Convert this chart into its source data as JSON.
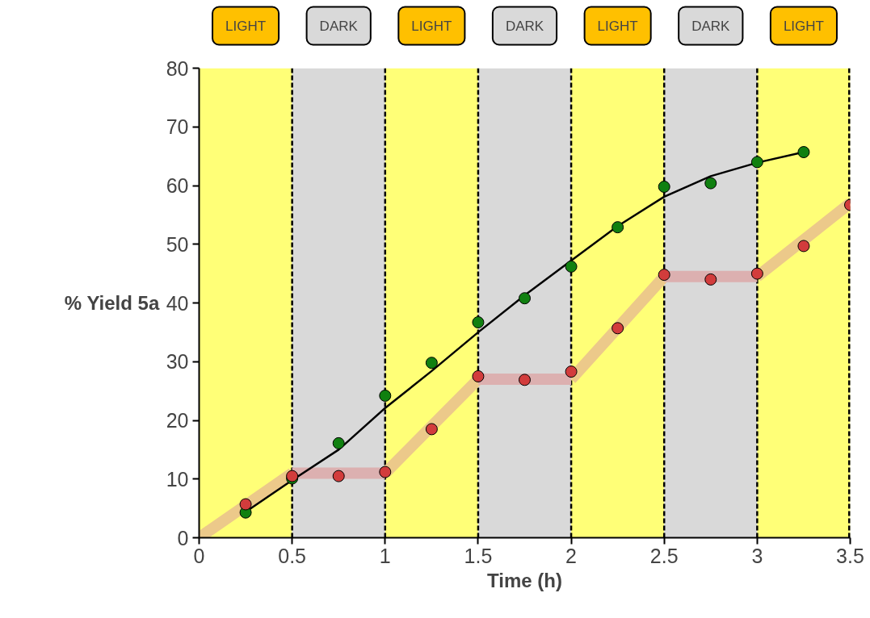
{
  "chart_data": {
    "type": "scatter",
    "xlabel": "Time (h)",
    "ylabel": "% Yield 5a",
    "xlim": [
      0,
      3.5
    ],
    "xticks": [
      0,
      0.5,
      1,
      1.5,
      2,
      2.5,
      3,
      3.5
    ],
    "ylim": [
      0,
      80
    ],
    "yticks": [
      0,
      10,
      20,
      30,
      40,
      50,
      60,
      70,
      80
    ],
    "grid": false,
    "marker": "circle",
    "series": [
      {
        "type": "line",
        "marker": "none",
        "color": "#ecc98a",
        "x": [
          0,
          0.5,
          null,
          1,
          1.5,
          null,
          2,
          2.5,
          null,
          3,
          3.5
        ],
        "values": [
          0,
          11,
          null,
          11,
          27,
          null,
          27,
          44.5,
          null,
          44.5,
          57
        ]
      },
      {
        "type": "line",
        "marker": "none",
        "color": "#dcb0b0",
        "x": [
          0.5,
          1,
          null,
          1.5,
          2,
          null,
          2.5,
          3
        ],
        "values": [
          11,
          11,
          null,
          27,
          27,
          null,
          44.5,
          44.5
        ]
      },
      {
        "type": "line",
        "marker": "none",
        "color": "#000000",
        "x": [
          0.25,
          0.5,
          0.75,
          1,
          1.25,
          1.5,
          1.75,
          2,
          2.25,
          2.5,
          2.75,
          3,
          3.25
        ],
        "values": [
          4.4,
          9.8,
          15,
          22.1,
          28.4,
          35,
          41.3,
          47.2,
          53.1,
          58.1,
          61.6,
          63.9,
          65.7
        ]
      },
      {
        "color": "#108010",
        "x": [
          0.25,
          0.5,
          0.75,
          1,
          1.25,
          1.5,
          1.75,
          2,
          2.25,
          2.5,
          2.75,
          3,
          3.25
        ],
        "values": [
          4.3,
          10.1,
          16.1,
          24.2,
          29.8,
          36.7,
          40.8,
          46.2,
          52.9,
          59.8,
          60.4,
          64,
          65.7
        ]
      },
      {
        "color": "#d23c3c",
        "x": [
          0.25,
          0.5,
          0.75,
          1,
          1.25,
          1.5,
          1.75,
          2,
          2.25,
          2.5,
          2.75,
          3,
          3.25,
          3.5
        ],
        "values": [
          5.7,
          10.5,
          10.5,
          11.2,
          18.5,
          27.5,
          26.9,
          28.3,
          35.7,
          44.8,
          44,
          45,
          49.7,
          56.7
        ]
      }
    ],
    "bands": [
      {
        "axis": "x",
        "from": 0,
        "to": 0.5,
        "label": "LIGHT",
        "color": "#ffff77"
      },
      {
        "axis": "x",
        "from": 0.5,
        "to": 1,
        "label": "DARK",
        "color": "#d9d9d9"
      },
      {
        "axis": "x",
        "from": 1,
        "to": 1.5,
        "label": "LIGHT",
        "color": "#ffff77"
      },
      {
        "axis": "x",
        "from": 1.5,
        "to": 2,
        "label": "DARK",
        "color": "#d9d9d9"
      },
      {
        "axis": "x",
        "from": 2,
        "to": 2.5,
        "label": "LIGHT",
        "color": "#ffff77"
      },
      {
        "axis": "x",
        "from": 2.5,
        "to": 3,
        "label": "DARK",
        "color": "#d9d9d9"
      },
      {
        "axis": "x",
        "from": 3,
        "to": 3.5,
        "label": "LIGHT",
        "color": "#ffff77"
      }
    ],
    "ref_lines": [
      {
        "axis": "x",
        "value": 0.5,
        "line_style": "dashed",
        "color": "#000000"
      },
      {
        "axis": "x",
        "value": 1,
        "line_style": "dashed",
        "color": "#000000"
      },
      {
        "axis": "x",
        "value": 1.5,
        "line_style": "dashed",
        "color": "#000000"
      },
      {
        "axis": "x",
        "value": 2,
        "line_style": "dashed",
        "color": "#000000"
      },
      {
        "axis": "x",
        "value": 2.5,
        "line_style": "dashed",
        "color": "#000000"
      },
      {
        "axis": "x",
        "value": 3,
        "line_style": "dashed",
        "color": "#000000"
      },
      {
        "axis": "x",
        "value": 3.5,
        "line_style": "dashed",
        "color": "#000000"
      }
    ]
  }
}
